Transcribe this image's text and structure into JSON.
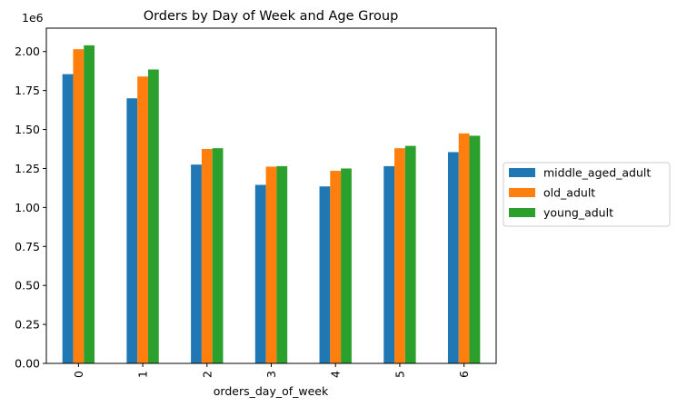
{
  "chart_data": {
    "type": "bar",
    "title": "Orders by Day of Week and Age Group",
    "xlabel": "orders_day_of_week",
    "ylabel": "",
    "exponent_label": "1e6",
    "categories": [
      "0",
      "1",
      "2",
      "3",
      "4",
      "5",
      "6"
    ],
    "series": [
      {
        "name": "middle_aged_adult",
        "color": "#1f77b4",
        "values": [
          1855000,
          1700000,
          1275000,
          1145000,
          1135000,
          1265000,
          1355000
        ]
      },
      {
        "name": "old_adult",
        "color": "#ff7f0e",
        "values": [
          2015000,
          1840000,
          1375000,
          1262000,
          1235000,
          1380000,
          1475000
        ]
      },
      {
        "name": "young_adult",
        "color": "#2ca02c",
        "values": [
          2040000,
          1885000,
          1380000,
          1265000,
          1250000,
          1395000,
          1460000
        ]
      }
    ],
    "ylim": [
      0,
      2150000
    ],
    "yticks": [
      0,
      250000,
      500000,
      750000,
      1000000,
      1250000,
      1500000,
      1750000,
      2000000
    ],
    "ytick_labels": [
      "0.00",
      "0.25",
      "0.50",
      "0.75",
      "1.00",
      "1.25",
      "1.50",
      "1.75",
      "2.00"
    ],
    "grid": false,
    "legend_position": "center-right outside"
  }
}
